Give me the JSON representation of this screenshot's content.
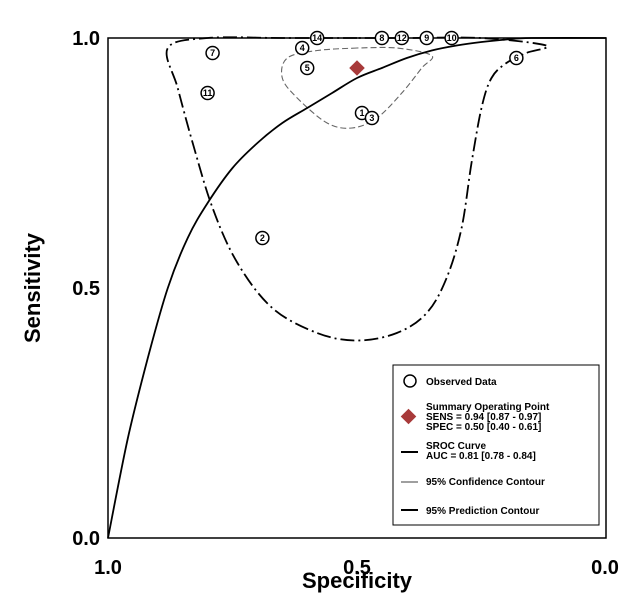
{
  "chart_data": {
    "type": "scatter",
    "xlabel": "Specificity",
    "ylabel": "Sensitivity",
    "x_axis_reversed": true,
    "xlim": [
      1.0,
      0.0
    ],
    "ylim": [
      0.0,
      1.0
    ],
    "x_ticks": [
      "1.0",
      "0.5",
      "0.0"
    ],
    "y_ticks": [
      "0.0",
      "0.5",
      "1.0"
    ],
    "grid": false,
    "legend_position": "bottom-right",
    "observed_data": [
      {
        "label": "1",
        "spec": 0.49,
        "sens": 0.85
      },
      {
        "label": "2",
        "spec": 0.69,
        "sens": 0.6
      },
      {
        "label": "3",
        "spec": 0.47,
        "sens": 0.84
      },
      {
        "label": "4",
        "spec": 0.61,
        "sens": 0.98
      },
      {
        "label": "5",
        "spec": 0.6,
        "sens": 0.94
      },
      {
        "label": "6",
        "spec": 0.18,
        "sens": 0.96
      },
      {
        "label": "7",
        "spec": 0.79,
        "sens": 0.97
      },
      {
        "label": "8",
        "spec": 0.45,
        "sens": 1.0
      },
      {
        "label": "9",
        "spec": 0.36,
        "sens": 1.0
      },
      {
        "label": "10",
        "spec": 0.31,
        "sens": 1.0
      },
      {
        "label": "11",
        "spec": 0.8,
        "sens": 0.89
      },
      {
        "label": "12",
        "spec": 0.41,
        "sens": 1.0
      },
      {
        "label": "14",
        "spec": 0.58,
        "sens": 1.0
      }
    ],
    "summary_point": {
      "spec": 0.5,
      "sens": 0.94
    },
    "sroc_curve": [
      [
        1.0,
        0.0
      ],
      [
        0.96,
        0.2
      ],
      [
        0.92,
        0.36
      ],
      [
        0.88,
        0.5
      ],
      [
        0.84,
        0.6
      ],
      [
        0.8,
        0.67
      ],
      [
        0.75,
        0.74
      ],
      [
        0.7,
        0.79
      ],
      [
        0.65,
        0.83
      ],
      [
        0.6,
        0.86
      ],
      [
        0.55,
        0.89
      ],
      [
        0.5,
        0.92
      ],
      [
        0.45,
        0.94
      ],
      [
        0.4,
        0.96
      ],
      [
        0.35,
        0.975
      ],
      [
        0.3,
        0.985
      ],
      [
        0.25,
        0.992
      ],
      [
        0.2,
        0.997
      ],
      [
        0.15,
        1.0
      ],
      [
        0.0,
        1.0
      ]
    ],
    "confidence_contour": [
      [
        0.5,
        0.98
      ],
      [
        0.58,
        0.975
      ],
      [
        0.64,
        0.96
      ],
      [
        0.65,
        0.92
      ],
      [
        0.62,
        0.88
      ],
      [
        0.56,
        0.83
      ],
      [
        0.51,
        0.82
      ],
      [
        0.46,
        0.84
      ],
      [
        0.41,
        0.89
      ],
      [
        0.37,
        0.94
      ],
      [
        0.35,
        0.965
      ],
      [
        0.42,
        0.98
      ],
      [
        0.5,
        0.98
      ]
    ],
    "prediction_contour": [
      [
        0.5,
        1.0
      ],
      [
        0.65,
        1.0
      ],
      [
        0.8,
        1.0
      ],
      [
        0.88,
        0.98
      ],
      [
        0.86,
        0.9
      ],
      [
        0.83,
        0.79
      ],
      [
        0.79,
        0.66
      ],
      [
        0.74,
        0.55
      ],
      [
        0.67,
        0.46
      ],
      [
        0.58,
        0.41
      ],
      [
        0.5,
        0.395
      ],
      [
        0.42,
        0.41
      ],
      [
        0.36,
        0.45
      ],
      [
        0.32,
        0.52
      ],
      [
        0.29,
        0.62
      ],
      [
        0.27,
        0.75
      ],
      [
        0.25,
        0.86
      ],
      [
        0.23,
        0.92
      ],
      [
        0.2,
        0.95
      ],
      [
        0.16,
        0.97
      ],
      [
        0.12,
        0.985
      ],
      [
        0.25,
        1.0
      ],
      [
        0.4,
        1.0
      ],
      [
        0.5,
        1.0
      ]
    ],
    "legend": [
      {
        "key": "observed",
        "lines": [
          "Observed Data"
        ]
      },
      {
        "key": "summary",
        "lines": [
          "Summary Operating Point",
          "SENS = 0.94 [0.87 - 0.97]",
          "SPEC = 0.50 [0.40 - 0.61]"
        ]
      },
      {
        "key": "sroc",
        "lines": [
          "SROC Curve",
          "AUC = 0.81 [0.78 - 0.84]"
        ]
      },
      {
        "key": "confidence",
        "lines": [
          "95% Confidence Contour"
        ]
      },
      {
        "key": "prediction",
        "lines": [
          "95% Prediction Contour"
        ]
      }
    ],
    "colors": {
      "summary_marker": "#a83a3a",
      "lines": "#000000",
      "confidence_line": "#666666"
    }
  }
}
